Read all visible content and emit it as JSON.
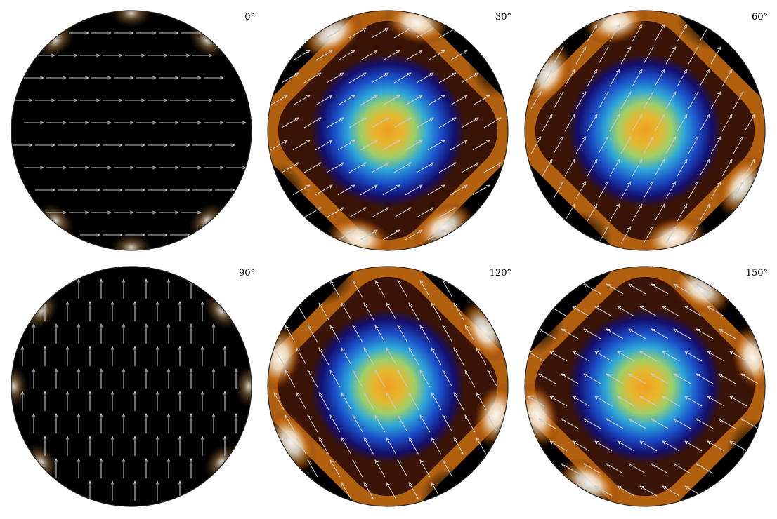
{
  "figure": {
    "panels": [
      {
        "angle_deg": 0,
        "label": "0°",
        "intensity": "low"
      },
      {
        "angle_deg": 30,
        "label": "30°",
        "intensity": "high"
      },
      {
        "angle_deg": 60,
        "label": "60°",
        "intensity": "high"
      },
      {
        "angle_deg": 90,
        "label": "90°",
        "intensity": "low"
      },
      {
        "angle_deg": 120,
        "label": "120°",
        "intensity": "high"
      },
      {
        "angle_deg": 150,
        "label": "150°",
        "intensity": "high"
      }
    ],
    "colormap": {
      "stops": [
        "#000000",
        "#140f6e",
        "#1a4fc8",
        "#2ea7d8",
        "#9ccf6a",
        "#f0a020"
      ],
      "edge_colors": [
        "#000000",
        "#6b2d0a",
        "#c46a12",
        "#f0b060",
        "#f4e6d0",
        "#ffffff"
      ]
    },
    "arrow_color": "#c8c8c8",
    "outline_color": "#2a2a2a"
  }
}
